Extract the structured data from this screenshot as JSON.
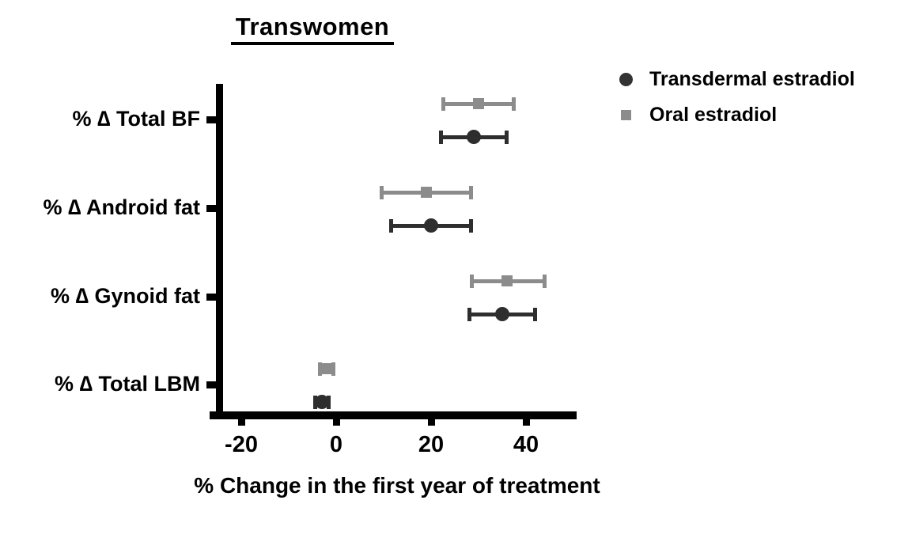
{
  "title": "Transwomen",
  "legend": {
    "items": [
      {
        "label": "Transdermal estradiol",
        "marker": "circle",
        "color": "#333333"
      },
      {
        "label": "Oral estradiol",
        "marker": "square",
        "color": "#8c8c8c"
      }
    ]
  },
  "colors": {
    "axis": "#000000",
    "transdermal": "#2e2e2e",
    "oral": "#8c8c8c"
  },
  "chart_data": {
    "type": "scatter",
    "subtype": "forest-plot-horizontal-error-bars",
    "title": "Transwomen",
    "xlabel": "% Change in the first year of treatment",
    "ylabel": "",
    "xlim": [
      -25,
      50
    ],
    "xticks": [
      -20,
      0,
      20,
      40
    ],
    "grid": false,
    "legend_position": "top-right",
    "categories": [
      "% ∆ Total BF",
      "% ∆ Android fat",
      "% ∆ Gynoid fat",
      "% ∆ Total LBM"
    ],
    "series": [
      {
        "name": "Oral estradiol",
        "marker": "square",
        "color": "#8c8c8c",
        "values": [
          30,
          19,
          36,
          -2
        ],
        "ci_low": [
          22.5,
          9.5,
          28.5,
          -3.5
        ],
        "ci_high": [
          37.5,
          28.5,
          44,
          -0.5
        ]
      },
      {
        "name": "Transdermal estradiol",
        "marker": "circle",
        "color": "#2e2e2e",
        "values": [
          29,
          20,
          35,
          -3
        ],
        "ci_low": [
          22,
          11.5,
          28,
          -4.5
        ],
        "ci_high": [
          36,
          28.5,
          42,
          -1.5
        ]
      }
    ]
  }
}
